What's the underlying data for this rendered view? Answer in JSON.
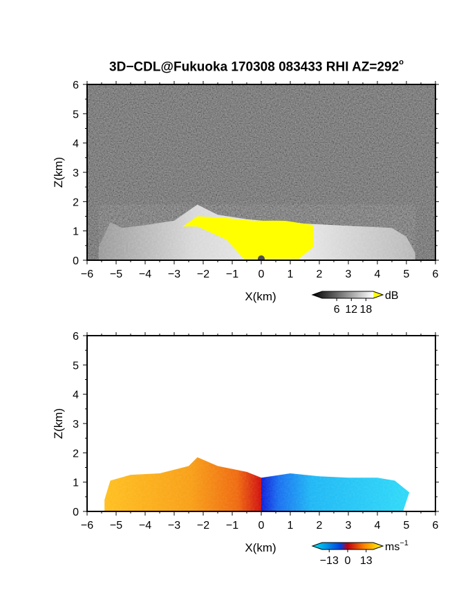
{
  "title": {
    "text": "3D−CDL@Fukuoka 170308 083433 RHI AZ=292",
    "degree": "o"
  },
  "colors": {
    "frame": "#000000",
    "dark_background": "#1e1e1e",
    "saturation_yellow": "#ffff00",
    "velocity_positive": "#f5a020",
    "velocity_negative": "#00c8f0"
  },
  "chart_data": [
    {
      "type": "heatmap",
      "panel": "top",
      "quantity": "SNR",
      "xlabel": "X(km)",
      "ylabel": "Z(km)",
      "xlim": [
        -6,
        6
      ],
      "ylim": [
        0,
        6
      ],
      "x_ticks": [
        "−6",
        "−5",
        "−4",
        "−3",
        "−2",
        "−1",
        "0",
        "1",
        "2",
        "3",
        "4",
        "5",
        "6"
      ],
      "y_ticks": [
        "0",
        "1",
        "2",
        "3",
        "4",
        "5",
        "6"
      ],
      "colorbar": {
        "unit": "dB",
        "ticks": [
          "6",
          "12",
          "18"
        ],
        "tick_values": [
          6,
          12,
          18
        ],
        "range": [
          0,
          21
        ],
        "colors": [
          "#000000",
          "#ffffff",
          "#ffff00"
        ]
      },
      "echo_top_km": [
        {
          "x": -5.6,
          "z": 0.45
        },
        {
          "x": -5.2,
          "z": 1.3
        },
        {
          "x": -4.8,
          "z": 1.1
        },
        {
          "x": -4.0,
          "z": 1.2
        },
        {
          "x": -3.0,
          "z": 1.35
        },
        {
          "x": -2.2,
          "z": 1.9
        },
        {
          "x": -1.5,
          "z": 1.55
        },
        {
          "x": -0.5,
          "z": 1.4
        },
        {
          "x": 0.5,
          "z": 1.3
        },
        {
          "x": 1.5,
          "z": 1.25
        },
        {
          "x": 2.5,
          "z": 1.2
        },
        {
          "x": 3.5,
          "z": 1.15
        },
        {
          "x": 4.5,
          "z": 1.1
        },
        {
          "x": 5.0,
          "z": 0.8
        },
        {
          "x": 5.3,
          "z": 0.25
        }
      ],
      "saturated_region_km": [
        {
          "x": -2.7,
          "z": 1.15
        },
        {
          "x": -2.2,
          "z": 1.5
        },
        {
          "x": -1.3,
          "z": 1.45
        },
        {
          "x": -0.3,
          "z": 1.35
        },
        {
          "x": 0.8,
          "z": 1.35
        },
        {
          "x": 1.8,
          "z": 1.2
        },
        {
          "x": 1.8,
          "z": 0.45
        },
        {
          "x": 1.3,
          "z": 0.05
        },
        {
          "x": -0.6,
          "z": 0.05
        },
        {
          "x": -1.2,
          "z": 0.7
        },
        {
          "x": -2.2,
          "z": 1.15
        }
      ]
    },
    {
      "type": "heatmap",
      "panel": "bottom",
      "quantity": "Doppler velocity",
      "xlabel": "X(km)",
      "ylabel": "Z(km)",
      "xlim": [
        -6,
        6
      ],
      "ylim": [
        0,
        6
      ],
      "x_ticks": [
        "−6",
        "−5",
        "−4",
        "−3",
        "−2",
        "−1",
        "0",
        "1",
        "2",
        "3",
        "4",
        "5",
        "6"
      ],
      "y_ticks": [
        "0",
        "1",
        "2",
        "3",
        "4",
        "5",
        "6"
      ],
      "colorbar": {
        "unit": "ms",
        "unit_exponent": "−1",
        "ticks": [
          "−13",
          "0",
          "13"
        ],
        "tick_values": [
          -13,
          0,
          13
        ],
        "range": [
          -18,
          18
        ],
        "colors": [
          "#00e0f0",
          "#0030e0",
          "#d00000",
          "#ff9000",
          "#ffff00"
        ]
      },
      "echo_top_km": [
        {
          "x": -5.4,
          "z": 0.4
        },
        {
          "x": -5.2,
          "z": 1.05
        },
        {
          "x": -4.5,
          "z": 1.25
        },
        {
          "x": -3.5,
          "z": 1.3
        },
        {
          "x": -2.5,
          "z": 1.55
        },
        {
          "x": -2.2,
          "z": 1.85
        },
        {
          "x": -1.5,
          "z": 1.55
        },
        {
          "x": -0.5,
          "z": 1.35
        },
        {
          "x": 0.0,
          "z": 1.15
        },
        {
          "x": 1.0,
          "z": 1.3
        },
        {
          "x": 2.0,
          "z": 1.2
        },
        {
          "x": 3.0,
          "z": 1.15
        },
        {
          "x": 4.0,
          "z": 1.15
        },
        {
          "x": 4.6,
          "z": 1.05
        },
        {
          "x": 5.1,
          "z": 0.65
        },
        {
          "x": 4.9,
          "z": 0.05
        }
      ],
      "velocity_ms": {
        "left_of_lidar": 10,
        "right_of_lidar": -10,
        "near_lidar": 0
      }
    }
  ]
}
